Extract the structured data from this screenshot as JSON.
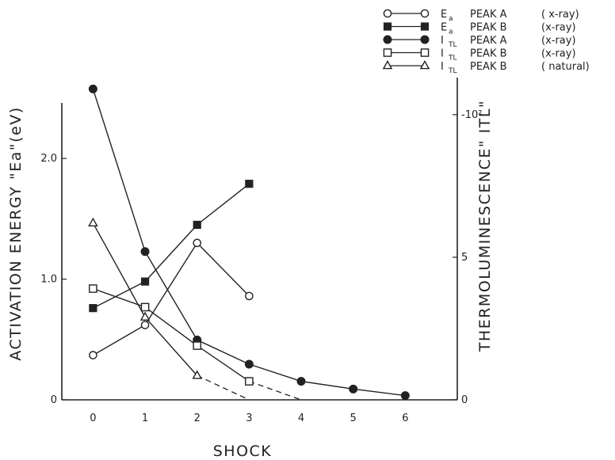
{
  "chart_data": {
    "type": "line",
    "xlabel": "SHOCK",
    "ylabel_left": "ACTIVATION ENERGY \"Ea\"(eV)",
    "ylabel_right": "THERMOLUMINESCENCE\" ITL\"",
    "x_ticks": [
      "0",
      "1",
      "2",
      "3",
      "4",
      "5",
      "6"
    ],
    "y_left_ticks": [
      "0",
      "1.0",
      "2.0"
    ],
    "y_right_ticks": [
      "0",
      "5",
      "-10²"
    ],
    "xlim": [
      -0.6,
      7.0
    ],
    "y_left_lim": [
      0,
      2.67
    ],
    "y_right_lim": [
      0,
      11.3
    ],
    "series": [
      {
        "legend_symbol": "E",
        "legend_subscript": "a",
        "legend_peak": "PEAK A",
        "legend_source": "( x-ray)",
        "marker": "circle-open",
        "axis": "left",
        "x": [
          0,
          1,
          2,
          3
        ],
        "y": [
          0.37,
          0.62,
          1.3,
          0.86
        ]
      },
      {
        "legend_symbol": "E",
        "legend_subscript": "a",
        "legend_peak": "PEAK B",
        "legend_source": "(x-ray)",
        "marker": "square-filled",
        "axis": "left",
        "x": [
          0,
          1,
          2,
          3
        ],
        "y": [
          0.76,
          0.98,
          1.45,
          1.79
        ]
      },
      {
        "legend_symbol": "I",
        "legend_subscript": "TL",
        "legend_peak": "PEAK A",
        "legend_source": "(x-ray)",
        "marker": "circle-filled",
        "axis": "right",
        "x": [
          0,
          1,
          2,
          3,
          4,
          5,
          6
        ],
        "y": [
          10.9,
          5.2,
          2.1,
          1.25,
          0.65,
          0.38,
          0.15
        ]
      },
      {
        "legend_symbol": "I",
        "legend_subscript": "TL",
        "legend_peak": "PEAK B",
        "legend_source": "(x-ray)",
        "marker": "square-open",
        "axis": "right",
        "x": [
          0,
          1,
          2,
          3
        ],
        "y": [
          3.9,
          3.25,
          1.9,
          0.65
        ],
        "dashed_to": [
          4,
          0
        ]
      },
      {
        "legend_symbol": "I",
        "legend_subscript": "TL",
        "legend_peak": "PEAK B",
        "legend_source": "( natural)",
        "marker": "triangle-open",
        "axis": "right",
        "x": [
          0,
          1,
          2
        ],
        "y": [
          6.2,
          2.9,
          0.85
        ],
        "dashed_to": [
          3,
          0
        ]
      }
    ],
    "grid": false,
    "legend_position": "top-right"
  }
}
